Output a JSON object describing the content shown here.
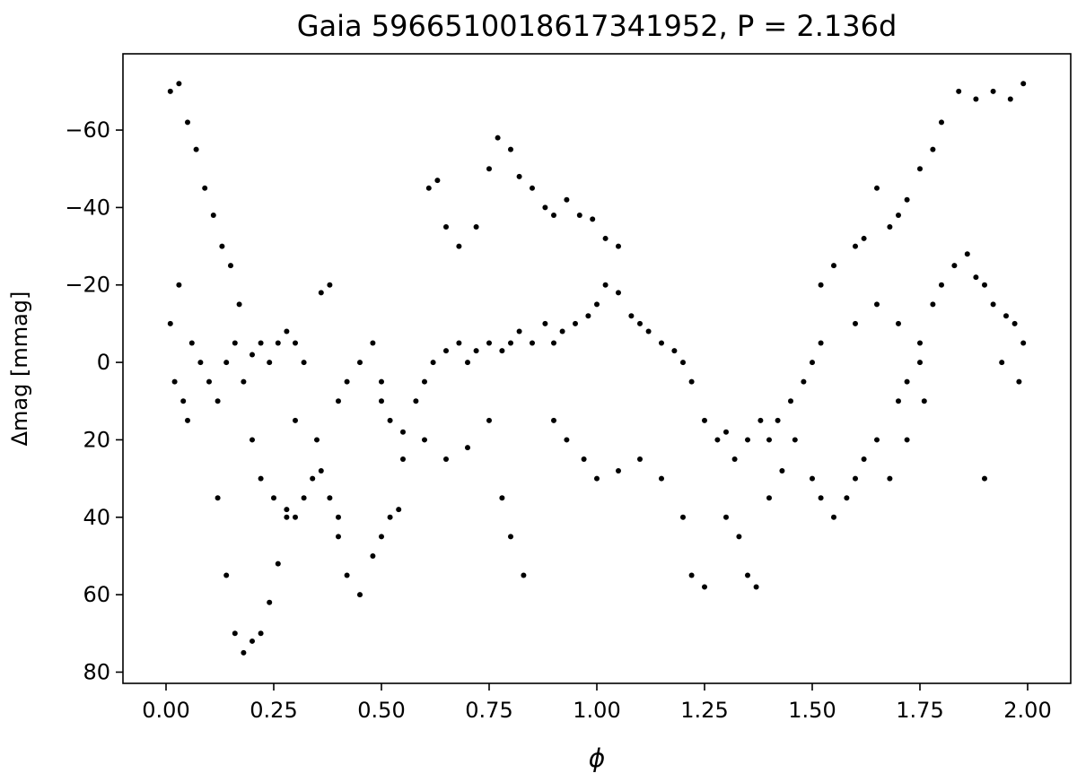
{
  "chart_data": {
    "type": "scatter",
    "title": "Gaia 5966510018617341952, P = 2.136d",
    "x_label": "ϕ",
    "y_label": "Δmag [mmag]",
    "color": "#000000",
    "y_inverted": true,
    "xlim": [
      -0.1,
      2.1
    ],
    "ylim": [
      -79.7,
      82.9
    ],
    "xticks": [
      {
        "value": 0,
        "label": "0.00"
      },
      {
        "value": 0.25,
        "label": "0.25"
      },
      {
        "value": 0.5,
        "label": "0.50"
      },
      {
        "value": 0.75,
        "label": "0.75"
      },
      {
        "value": 1,
        "label": "1.00"
      },
      {
        "value": 1.25,
        "label": "1.25"
      },
      {
        "value": 1.5,
        "label": "1.50"
      },
      {
        "value": 1.75,
        "label": "1.75"
      },
      {
        "value": 2,
        "label": "2.00"
      }
    ],
    "yticks": [
      {
        "value": -60,
        "label": "−60"
      },
      {
        "value": -40,
        "label": "−40"
      },
      {
        "value": -20,
        "label": "−20"
      },
      0,
      20,
      40,
      60,
      80
    ],
    "x": [
      0.01,
      0.03,
      0.05,
      0.07,
      0.09,
      0.11,
      0.13,
      0.15,
      0.17,
      0.12,
      0.14,
      0.16,
      0.18,
      0.2,
      0.22,
      0.24,
      0.26,
      0.28,
      0.01,
      0.02,
      0.03,
      0.04,
      0.05,
      0.06,
      0.08,
      0.1,
      0.12,
      0.14,
      0.16,
      0.18,
      0.2,
      0.22,
      0.24,
      0.26,
      0.28,
      0.3,
      0.32,
      0.2,
      0.22,
      0.25,
      0.28,
      0.3,
      0.32,
      0.34,
      0.36,
      0.38,
      0.4,
      0.3,
      0.35,
      0.38,
      0.36,
      0.4,
      0.42,
      0.45,
      0.48,
      0.5,
      0.4,
      0.42,
      0.45,
      0.48,
      0.5,
      0.52,
      0.54,
      0.5,
      0.52,
      0.55,
      0.58,
      0.6,
      0.62,
      0.65,
      0.68,
      0.7,
      0.72,
      0.75,
      0.78,
      0.8,
      0.82,
      0.85,
      0.88,
      0.9,
      0.92,
      0.95,
      0.98,
      0.61,
      0.63,
      0.65,
      0.68,
      0.72,
      0.75,
      0.77,
      0.8,
      0.82,
      0.85,
      0.88,
      0.9,
      0.93,
      0.96,
      0.99,
      1.02,
      1.05,
      0.55,
      0.6,
      0.65,
      0.7,
      0.75,
      0.78,
      0.8,
      0.83,
      0.9,
      0.93,
      0.97,
      1.0,
      1.05,
      1.1,
      1.15,
      1.2,
      1.22,
      1.25,
      1.0,
      1.02,
      1.05,
      1.08,
      1.1,
      1.12,
      1.15,
      1.18,
      1.2,
      1.22,
      1.25,
      1.28,
      1.3,
      1.32,
      1.35,
      1.38,
      1.4,
      1.42,
      1.45,
      1.48,
      1.5,
      1.52,
      1.3,
      1.33,
      1.35,
      1.37,
      1.4,
      1.43,
      1.46,
      1.5,
      1.52,
      1.55,
      1.58,
      1.6,
      1.62,
      1.65,
      1.7,
      1.72,
      1.75,
      1.52,
      1.55,
      1.6,
      1.62,
      1.65,
      1.68,
      1.7,
      1.72,
      1.75,
      1.78,
      1.8,
      1.84,
      1.88,
      1.92,
      1.96,
      1.99,
      1.6,
      1.65,
      1.7,
      1.75,
      1.78,
      1.8,
      1.83,
      1.86,
      1.88,
      1.9,
      1.92,
      1.95,
      1.97,
      1.99,
      1.98,
      1.94,
      1.68,
      1.72,
      1.76,
      1.9
    ],
    "values": [
      -70,
      -72,
      -62,
      -55,
      -45,
      -38,
      -30,
      -25,
      -15,
      35,
      55,
      70,
      75,
      72,
      70,
      62,
      52,
      40,
      -10,
      5,
      -20,
      10,
      15,
      -5,
      0,
      5,
      10,
      0,
      -5,
      5,
      -2,
      -5,
      0,
      -5,
      -8,
      -5,
      0,
      20,
      30,
      35,
      38,
      40,
      35,
      30,
      28,
      35,
      40,
      15,
      20,
      -20,
      -18,
      10,
      5,
      0,
      -5,
      5,
      45,
      55,
      60,
      50,
      45,
      40,
      38,
      10,
      15,
      18,
      10,
      5,
      0,
      -3,
      -5,
      0,
      -3,
      -5,
      -3,
      -5,
      -8,
      -5,
      -10,
      -5,
      -8,
      -10,
      -12,
      -45,
      -47,
      -35,
      -30,
      -35,
      -50,
      -58,
      -55,
      -48,
      -45,
      -40,
      -38,
      -42,
      -38,
      -37,
      -32,
      -30,
      25,
      20,
      25,
      22,
      15,
      35,
      45,
      55,
      15,
      20,
      25,
      30,
      28,
      25,
      30,
      40,
      55,
      58,
      -15,
      -20,
      -18,
      -12,
      -10,
      -8,
      -5,
      -3,
      0,
      5,
      15,
      20,
      18,
      25,
      20,
      15,
      20,
      15,
      10,
      5,
      0,
      -5,
      40,
      45,
      55,
      58,
      35,
      28,
      20,
      30,
      35,
      40,
      35,
      30,
      25,
      20,
      10,
      5,
      0,
      -20,
      -25,
      -30,
      -32,
      -45,
      -35,
      -38,
      -42,
      -50,
      -55,
      -62,
      -70,
      -68,
      -70,
      -68,
      -72,
      -10,
      -15,
      -10,
      -5,
      -15,
      -20,
      -25,
      -28,
      -22,
      -20,
      -15,
      -12,
      -10,
      -5,
      5,
      0,
      30,
      20,
      10,
      30
    ]
  }
}
